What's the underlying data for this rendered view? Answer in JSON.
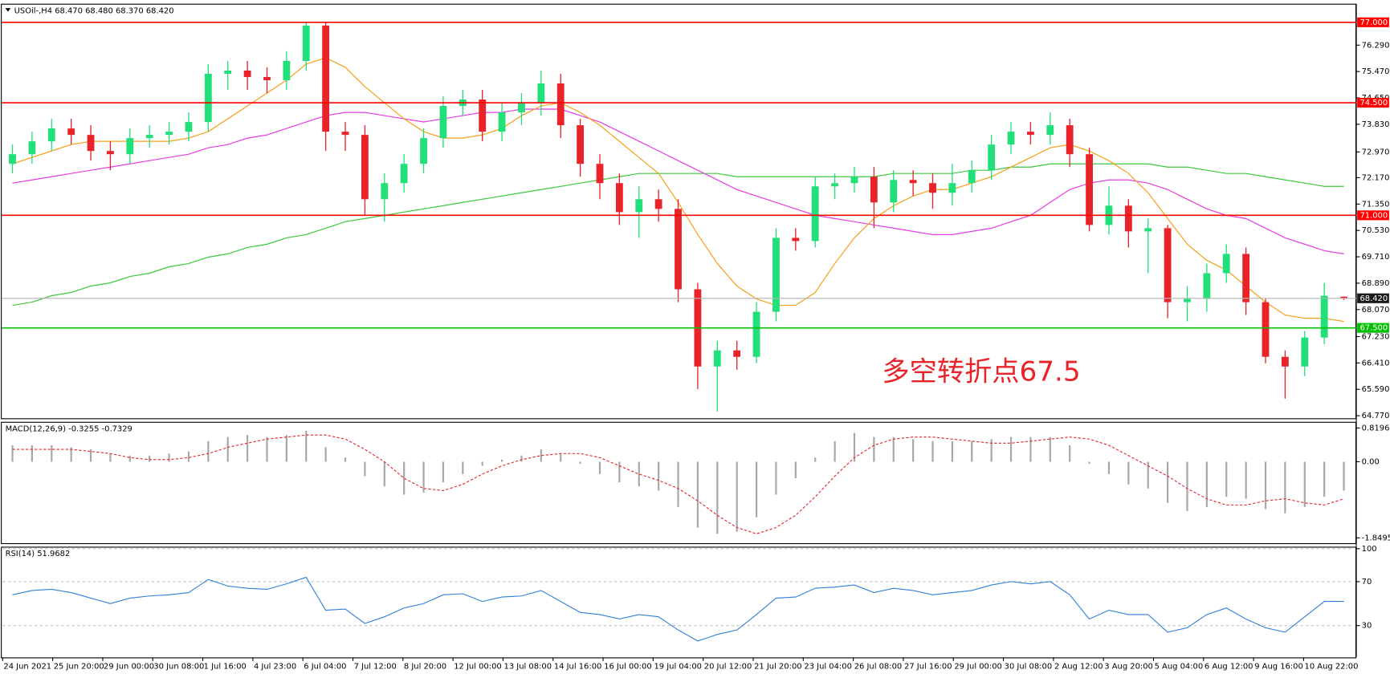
{
  "chart_data": {
    "type": "candlestick",
    "header": "USOil-,H4 68.470 68.480 68.370 68.420",
    "annotation": "多空转折点67.5",
    "ylim": [
      64.69,
      77.55
    ],
    "yticks": [
      {
        "value": 76.29,
        "label": "76.290"
      },
      {
        "value": 75.47,
        "label": "75.470"
      },
      {
        "value": 74.65,
        "label": "74.650"
      },
      {
        "value": 73.83,
        "label": "73.830"
      },
      {
        "value": 72.97,
        "label": "72.970"
      },
      {
        "value": 72.17,
        "label": "72.170"
      },
      {
        "value": 71.35,
        "label": "71.350"
      },
      {
        "value": 70.53,
        "label": "70.530"
      },
      {
        "value": 69.71,
        "label": "69.710"
      },
      {
        "value": 68.89,
        "label": "68.890"
      },
      {
        "value": 68.07,
        "label": "68.070"
      },
      {
        "value": 67.23,
        "label": "67.230"
      },
      {
        "value": 66.41,
        "label": "66.410"
      },
      {
        "value": 65.59,
        "label": "65.590"
      },
      {
        "value": 64.77,
        "label": "64.770"
      }
    ],
    "levels": [
      {
        "value": 77,
        "label": "77.000",
        "color": "#ff0000"
      },
      {
        "value": 74.5,
        "label": "74.500",
        "color": "#ff0000"
      },
      {
        "value": 71,
        "label": "71.000",
        "color": "#ff0000"
      },
      {
        "value": 67.5,
        "label": "67.500",
        "color": "#00c000"
      }
    ],
    "current": {
      "value": 68.42,
      "label": "68.420",
      "color": "#b4b4b4"
    },
    "colors": {
      "up": "#21e07a",
      "down": "#e8242a"
    },
    "open": [
      72.6,
      72.9,
      73.3,
      73.7,
      73.5,
      73.0,
      72.9,
      73.4,
      73.5,
      73.6,
      73.9,
      75.4,
      75.5,
      75.3,
      75.2,
      75.8,
      76.9,
      73.6,
      73.5,
      71.5,
      72.0,
      72.6,
      73.4,
      74.4,
      74.6,
      73.6,
      74.2,
      74.5,
      75.1,
      73.8,
      72.6,
      72.0,
      71.1,
      71.5,
      71.2,
      68.7,
      66.3,
      66.8,
      66.6,
      68.0,
      70.3,
      70.2,
      71.9,
      72.0,
      72.2,
      71.4,
      72.1,
      72.0,
      71.7,
      72.0,
      72.4,
      73.2,
      73.6,
      73.5,
      73.8,
      72.9,
      70.7,
      71.3,
      70.5,
      70.6,
      68.3,
      68.4,
      69.2,
      69.8,
      68.3,
      66.6,
      66.3,
      67.2,
      68.47
    ],
    "high": [
      73.2,
      73.6,
      74.0,
      74.0,
      73.8,
      73.3,
      73.7,
      73.8,
      73.9,
      74.2,
      75.7,
      75.8,
      75.8,
      75.6,
      76.1,
      77.0,
      77.0,
      73.9,
      73.8,
      72.3,
      72.9,
      73.7,
      74.7,
      74.9,
      74.9,
      74.5,
      74.8,
      75.5,
      75.4,
      74.0,
      72.9,
      72.3,
      71.9,
      71.8,
      71.5,
      68.9,
      67.1,
      67.1,
      68.3,
      70.6,
      70.6,
      72.2,
      72.3,
      72.5,
      72.5,
      72.4,
      72.4,
      72.3,
      72.6,
      72.7,
      73.5,
      73.9,
      73.9,
      74.2,
      74.0,
      73.1,
      71.9,
      71.5,
      70.9,
      70.7,
      68.8,
      69.5,
      70.1,
      70.0,
      68.4,
      66.8,
      67.4,
      68.9,
      68.48
    ],
    "low": [
      72.3,
      72.6,
      73.0,
      73.2,
      72.7,
      72.4,
      72.6,
      73.1,
      73.2,
      73.3,
      73.6,
      74.9,
      74.9,
      74.8,
      74.9,
      75.5,
      73.0,
      73.0,
      71.0,
      70.8,
      71.7,
      72.3,
      73.1,
      74.1,
      73.3,
      73.3,
      73.8,
      74.1,
      73.4,
      72.2,
      71.5,
      70.7,
      70.3,
      70.8,
      68.3,
      65.6,
      64.9,
      66.2,
      66.4,
      67.7,
      69.9,
      70.0,
      71.5,
      71.7,
      70.6,
      71.1,
      71.6,
      71.2,
      71.3,
      71.7,
      72.1,
      72.9,
      73.2,
      73.2,
      72.5,
      70.5,
      70.4,
      70.0,
      69.2,
      67.8,
      67.7,
      68.0,
      68.9,
      67.9,
      66.4,
      65.3,
      66.0,
      67.0,
      68.37
    ],
    "close": [
      72.9,
      73.3,
      73.7,
      73.5,
      73.0,
      72.9,
      73.4,
      73.5,
      73.6,
      73.9,
      75.4,
      75.5,
      75.3,
      75.2,
      75.8,
      76.9,
      73.6,
      73.5,
      71.5,
      72.0,
      72.6,
      73.4,
      74.4,
      74.6,
      73.6,
      74.2,
      74.5,
      75.1,
      73.8,
      72.6,
      72.0,
      71.1,
      71.5,
      71.2,
      68.7,
      66.3,
      66.8,
      66.6,
      68.0,
      70.3,
      70.2,
      71.9,
      72.0,
      72.2,
      71.4,
      72.1,
      72.0,
      71.7,
      72.0,
      72.4,
      73.2,
      73.6,
      73.5,
      73.8,
      72.9,
      70.7,
      71.3,
      70.5,
      70.6,
      68.3,
      68.4,
      69.2,
      69.8,
      68.3,
      66.6,
      66.3,
      67.2,
      68.5,
      68.42
    ],
    "ma": [
      {
        "color": "#f5a01a",
        "values": [
          72.6,
          72.8,
          73.0,
          73.2,
          73.3,
          73.3,
          73.3,
          73.3,
          73.3,
          73.4,
          73.6,
          74.0,
          74.4,
          74.8,
          75.2,
          75.7,
          75.9,
          75.6,
          75.0,
          74.5,
          74.0,
          73.6,
          73.4,
          73.4,
          73.5,
          73.7,
          74.1,
          74.4,
          74.5,
          74.2,
          73.8,
          73.3,
          72.8,
          72.3,
          71.4,
          70.4,
          69.5,
          68.8,
          68.4,
          68.2,
          68.2,
          68.6,
          69.5,
          70.3,
          70.9,
          71.3,
          71.6,
          71.8,
          71.8,
          72.0,
          72.2,
          72.5,
          72.8,
          73.1,
          73.2,
          73.0,
          72.7,
          72.3,
          71.7,
          70.9,
          70.1,
          69.6,
          69.3,
          68.8,
          68.3,
          67.9,
          67.8,
          67.8,
          67.7
        ]
      },
      {
        "color": "#e43ee4",
        "values": [
          72.0,
          72.1,
          72.2,
          72.3,
          72.4,
          72.5,
          72.6,
          72.7,
          72.8,
          72.9,
          73.1,
          73.2,
          73.4,
          73.5,
          73.7,
          73.9,
          74.1,
          74.2,
          74.2,
          74.1,
          74.0,
          73.9,
          74.0,
          74.1,
          74.2,
          74.2,
          74.3,
          74.3,
          74.3,
          74.1,
          73.9,
          73.6,
          73.3,
          73.0,
          72.7,
          72.4,
          72.1,
          71.8,
          71.6,
          71.4,
          71.2,
          71.0,
          70.9,
          70.8,
          70.7,
          70.6,
          70.5,
          70.4,
          70.4,
          70.5,
          70.6,
          70.8,
          71.0,
          71.4,
          71.8,
          72.0,
          72.1,
          72.1,
          72.0,
          71.8,
          71.5,
          71.2,
          71.0,
          70.9,
          70.6,
          70.3,
          70.1,
          69.9,
          69.8
        ]
      },
      {
        "color": "#3cc83c",
        "values": [
          68.2,
          68.3,
          68.5,
          68.6,
          68.8,
          68.9,
          69.1,
          69.2,
          69.4,
          69.5,
          69.7,
          69.8,
          70.0,
          70.1,
          70.3,
          70.4,
          70.6,
          70.8,
          70.9,
          71.0,
          71.1,
          71.2,
          71.3,
          71.4,
          71.5,
          71.6,
          71.7,
          71.8,
          71.9,
          72.0,
          72.1,
          72.2,
          72.3,
          72.3,
          72.3,
          72.3,
          72.3,
          72.2,
          72.2,
          72.2,
          72.2,
          72.2,
          72.2,
          72.2,
          72.2,
          72.3,
          72.3,
          72.3,
          72.3,
          72.4,
          72.4,
          72.5,
          72.5,
          72.6,
          72.6,
          72.6,
          72.6,
          72.6,
          72.6,
          72.5,
          72.5,
          72.4,
          72.3,
          72.3,
          72.2,
          72.1,
          72.0,
          71.9,
          71.9
        ]
      }
    ],
    "x_labels": [
      "24 Jun 2021",
      "25 Jun 20:00",
      "29 Jun 00:00",
      "30 Jun 08:00",
      "1 Jul 16:00",
      "4 Jul 23:00",
      "6 Jul 04:00",
      "7 Jul 12:00",
      "8 Jul 20:00",
      "12 Jul 00:00",
      "13 Jul 08:00",
      "14 Jul 16:00",
      "16 Jul 00:00",
      "19 Jul 04:00",
      "20 Jul 12:00",
      "21 Jul 20:00",
      "23 Jul 04:00",
      "26 Jul 08:00",
      "27 Jul 16:00",
      "29 Jul 00:00",
      "30 Jul 08:00",
      "2 Aug 12:00",
      "3 Aug 20:00",
      "5 Aug 04:00",
      "6 Aug 12:00",
      "9 Aug 16:00",
      "10 Aug 22:00"
    ],
    "macd": {
      "title": "MACD(12,26,9) -0.3255 -0.7329",
      "ylim": [
        -1.978,
        0.948
      ],
      "yticks": [
        0.8196,
        {
          "value": 0,
          "label": "0.00"
        },
        -1.8495
      ],
      "hist_color": "#a8a8a8",
      "signal_color": "#e8242a",
      "histogram": [
        0.4,
        0.4,
        0.4,
        0.35,
        0.3,
        0.2,
        0.15,
        0.15,
        0.2,
        0.25,
        0.5,
        0.6,
        0.65,
        0.6,
        0.65,
        0.75,
        0.35,
        0.1,
        -0.35,
        -0.6,
        -0.8,
        -0.75,
        -0.5,
        -0.3,
        -0.1,
        0.05,
        0.15,
        0.3,
        0.2,
        -0.05,
        -0.3,
        -0.5,
        -0.6,
        -0.7,
        -1.1,
        -1.6,
        -1.75,
        -1.7,
        -1.35,
        -0.8,
        -0.4,
        0.1,
        0.5,
        0.7,
        0.6,
        0.6,
        0.55,
        0.5,
        0.5,
        0.5,
        0.55,
        0.6,
        0.6,
        0.6,
        0.4,
        -0.05,
        -0.3,
        -0.55,
        -0.65,
        -1.0,
        -1.2,
        -1.1,
        -0.85,
        -0.9,
        -1.15,
        -1.25,
        -1.1,
        -0.85,
        -0.7
      ],
      "signal": [
        0.3,
        0.3,
        0.3,
        0.3,
        0.25,
        0.2,
        0.1,
        0.05,
        0.05,
        0.1,
        0.2,
        0.35,
        0.45,
        0.55,
        0.6,
        0.65,
        0.65,
        0.55,
        0.3,
        0.0,
        -0.4,
        -0.65,
        -0.7,
        -0.55,
        -0.3,
        -0.1,
        0.05,
        0.15,
        0.2,
        0.2,
        0.1,
        -0.1,
        -0.3,
        -0.45,
        -0.65,
        -0.95,
        -1.3,
        -1.6,
        -1.75,
        -1.6,
        -1.3,
        -0.85,
        -0.35,
        0.1,
        0.4,
        0.55,
        0.6,
        0.6,
        0.55,
        0.5,
        0.45,
        0.45,
        0.5,
        0.55,
        0.6,
        0.55,
        0.4,
        0.15,
        -0.1,
        -0.35,
        -0.65,
        -0.9,
        -1.05,
        -1.05,
        -0.95,
        -0.9,
        -1.0,
        -1.05,
        -0.9
      ]
    },
    "rsi": {
      "title": "RSI(14) 51.9682",
      "ylim": [
        1,
        101
      ],
      "yticks": [
        100,
        70,
        30
      ],
      "color": "#2f7fd8",
      "values": [
        58,
        62,
        63,
        60,
        55,
        50,
        55,
        57,
        58,
        60,
        72,
        66,
        64,
        63,
        68,
        74,
        44,
        45,
        32,
        38,
        46,
        50,
        58,
        59,
        52,
        56,
        57,
        62,
        52,
        42,
        40,
        36,
        40,
        38,
        26,
        16,
        22,
        26,
        40,
        55,
        56,
        64,
        65,
        67,
        60,
        64,
        62,
        58,
        60,
        62,
        67,
        70,
        68,
        70,
        58,
        36,
        44,
        40,
        40,
        24,
        28,
        40,
        46,
        36,
        28,
        24,
        38,
        52,
        52
      ]
    }
  }
}
